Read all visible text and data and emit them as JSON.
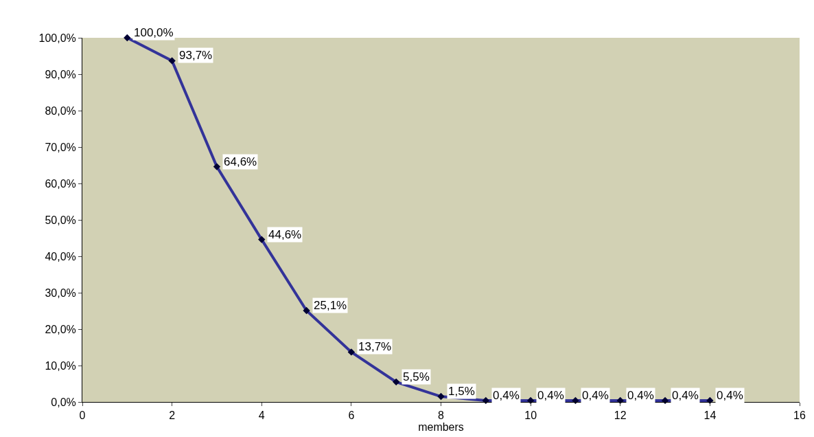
{
  "chart_data": {
    "type": "line",
    "xlabel": "members",
    "x": [
      1,
      2,
      3,
      4,
      5,
      6,
      7,
      8,
      9,
      10,
      11,
      12,
      13,
      14
    ],
    "series": [
      {
        "color": "#333399",
        "values": [
          100,
          93.7,
          64.6,
          44.6,
          25.1,
          13.7,
          5.5,
          1.5,
          0.4,
          0.4,
          0.4,
          0.4,
          0.4,
          0.4
        ],
        "value_labels": [
          "100,0%",
          "93,7%",
          "64,6%",
          "44,6%",
          "25,1%",
          "13,7%",
          "5,5%",
          "1,5%",
          "0,4%",
          "0,4%",
          "0,4%",
          "0,4%",
          "0,4%",
          "0,4%"
        ]
      }
    ],
    "xlim": [
      0,
      16
    ],
    "xticks": [
      0,
      2,
      4,
      6,
      8,
      10,
      12,
      14,
      16
    ],
    "ylim": [
      0,
      100
    ],
    "yticks": [
      {
        "value": 0,
        "label": "0,0%"
      },
      {
        "value": 10,
        "label": "10,0%"
      },
      {
        "value": 20,
        "label": "20,0%"
      },
      {
        "value": 30,
        "label": "30,0%"
      },
      {
        "value": 40,
        "label": "40,0%"
      },
      {
        "value": 50,
        "label": "50,0%"
      },
      {
        "value": 60,
        "label": "60,0%"
      },
      {
        "value": 70,
        "label": "70,0%"
      },
      {
        "value": 80,
        "label": "80,0%"
      },
      {
        "value": 90,
        "label": "90,0%"
      },
      {
        "value": 100,
        "label": "100,0%"
      }
    ],
    "marker": "diamond",
    "line_style": "solid",
    "grid": false
  }
}
